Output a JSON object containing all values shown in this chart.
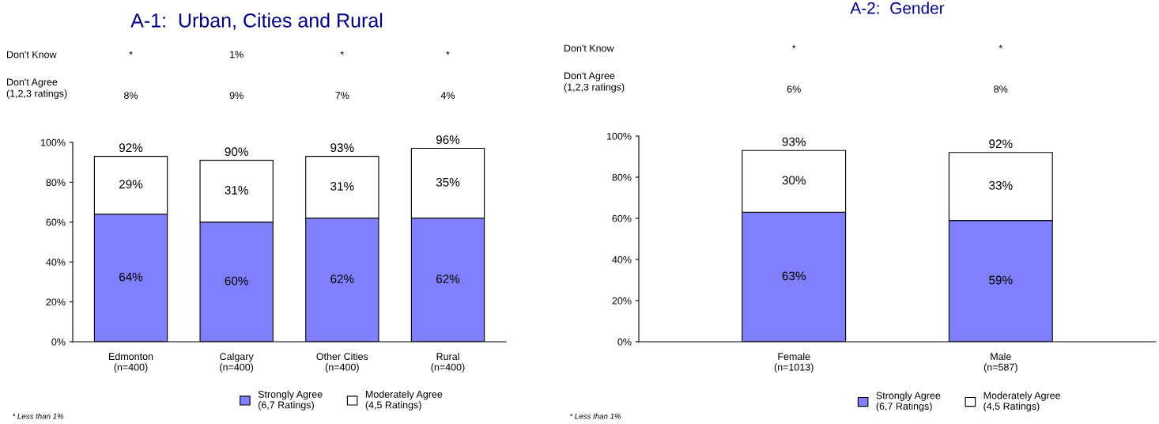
{
  "chart_data": [
    {
      "type": "bar",
      "title": "A-1:  Urban, Cities and Rural",
      "categories": [
        "Edmonton\n(n=400)",
        "Calgary\n(n=400)",
        "Other Cities\n(n=400)",
        "Rural\n(n=400)"
      ],
      "stacked": true,
      "series": [
        {
          "name": "Strongly Agree\n(6,7 Ratings)",
          "color": "#8080ff",
          "values": [
            64,
            60,
            62,
            62
          ],
          "value_labels": [
            "64%",
            "60%",
            "62%",
            "62%"
          ]
        },
        {
          "name": "Moderately Agree\n(4,5 Ratings)",
          "color": "#ffffff",
          "values": [
            29,
            31,
            31,
            35
          ],
          "value_labels": [
            "29%",
            "31%",
            "31%",
            "35%"
          ]
        }
      ],
      "totals": [
        "92%",
        "90%",
        "93%",
        "96%"
      ],
      "ylim": [
        0,
        100
      ],
      "yticks": [
        {
          "value": 0,
          "label": "0%"
        },
        {
          "value": 20,
          "label": "20%"
        },
        {
          "value": 40,
          "label": "40%"
        },
        {
          "value": 60,
          "label": "60%"
        },
        {
          "value": 80,
          "label": "80%"
        },
        {
          "value": 100,
          "label": "100%"
        }
      ],
      "grid": false,
      "legend": "bottom",
      "annotations": [
        "Don't Know",
        "*",
        "1%",
        "*",
        "*",
        "Don't Agree\n(1,2,3 ratings)",
        "8%",
        "9%",
        "7%",
        "4%",
        "* Less than 1%"
      ]
    },
    {
      "type": "bar",
      "title": "A-2:  Gender",
      "categories": [
        "Female\n(n=1013)",
        "Male\n(n=587)"
      ],
      "stacked": true,
      "series": [
        {
          "name": "Strongly Agree\n(6,7 Ratings)",
          "color": "#8080ff",
          "values": [
            63,
            59
          ],
          "value_labels": [
            "63%",
            "59%"
          ]
        },
        {
          "name": "Moderately Agree\n(4,5 Ratings)",
          "color": "#ffffff",
          "values": [
            30,
            33
          ],
          "value_labels": [
            "30%",
            "33%"
          ]
        }
      ],
      "totals": [
        "93%",
        "92%"
      ],
      "ylim": [
        0,
        100
      ],
      "yticks": [
        {
          "value": 0,
          "label": "0%"
        },
        {
          "value": 20,
          "label": "20%"
        },
        {
          "value": 40,
          "label": "40%"
        },
        {
          "value": 60,
          "label": "60%"
        },
        {
          "value": 80,
          "label": "80%"
        },
        {
          "value": 100,
          "label": "100%"
        }
      ],
      "grid": false,
      "legend": "bottom",
      "annotations": [
        "Don't Know",
        "*",
        "*",
        "Don't Agree\n(1,2,3 ratings)",
        "6%",
        "8%",
        "* Less than 1%"
      ]
    }
  ]
}
